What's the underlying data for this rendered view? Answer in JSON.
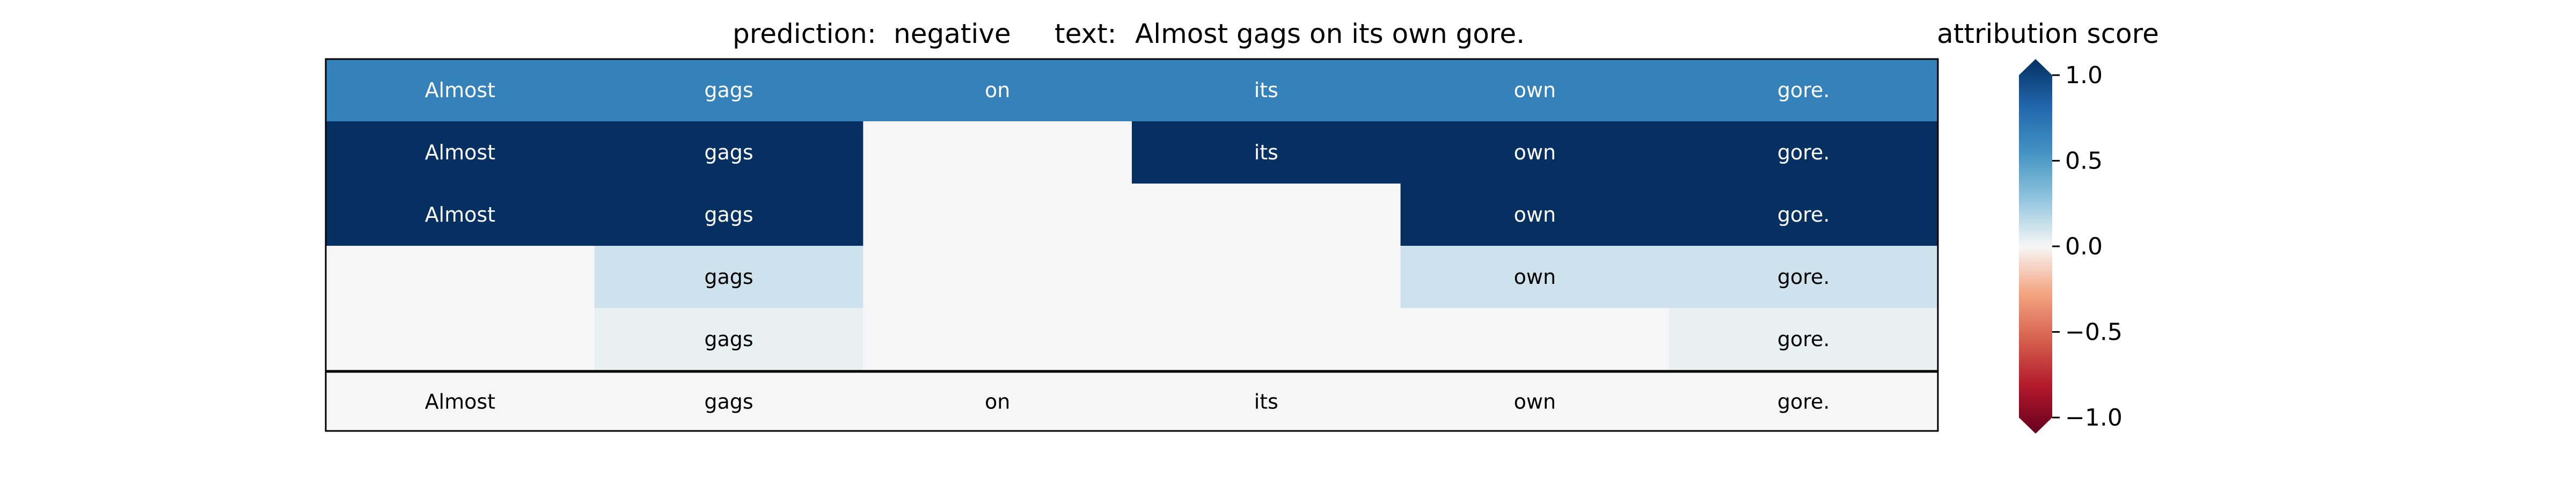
{
  "chart_data": {
    "type": "heatmap",
    "prediction_label": "prediction:",
    "prediction_value": "negative",
    "text_label": "text:",
    "text_value": "Almost gags on its own gore.",
    "colorbar": {
      "title": "attribution score",
      "ticks": [
        "1.0",
        "0.5",
        "0.0",
        "−0.5",
        "−1.0"
      ],
      "tick_values": [
        1.0,
        0.5,
        0.0,
        -0.5,
        -1.0
      ],
      "range": [
        -1.0,
        1.0
      ],
      "colormap": "RdBu"
    },
    "tokens": [
      "Almost",
      "gags",
      "on",
      "its",
      "own",
      "gore."
    ],
    "rows": [
      {
        "values": [
          0.6,
          0.6,
          0.6,
          0.6,
          0.6,
          0.6
        ],
        "shown": [
          true,
          true,
          true,
          true,
          true,
          true
        ]
      },
      {
        "values": [
          1.0,
          1.0,
          0.0,
          1.0,
          1.0,
          1.0
        ],
        "shown": [
          true,
          true,
          false,
          true,
          true,
          true
        ]
      },
      {
        "values": [
          1.0,
          1.0,
          0.0,
          0.0,
          1.0,
          1.0
        ],
        "shown": [
          true,
          true,
          false,
          false,
          true,
          true
        ]
      },
      {
        "values": [
          0.0,
          0.1,
          0.0,
          0.0,
          0.1,
          0.1
        ],
        "shown": [
          false,
          true,
          false,
          false,
          true,
          true
        ]
      },
      {
        "values": [
          0.0,
          0.03,
          0.0,
          0.0,
          0.0,
          0.03
        ],
        "shown": [
          false,
          true,
          false,
          false,
          false,
          true
        ]
      }
    ],
    "reference_row": {
      "tokens": [
        "Almost",
        "gags",
        "on",
        "its",
        "own",
        "gore."
      ],
      "values": [
        0.0,
        0.0,
        0.0,
        0.0,
        0.0,
        0.0
      ]
    }
  }
}
